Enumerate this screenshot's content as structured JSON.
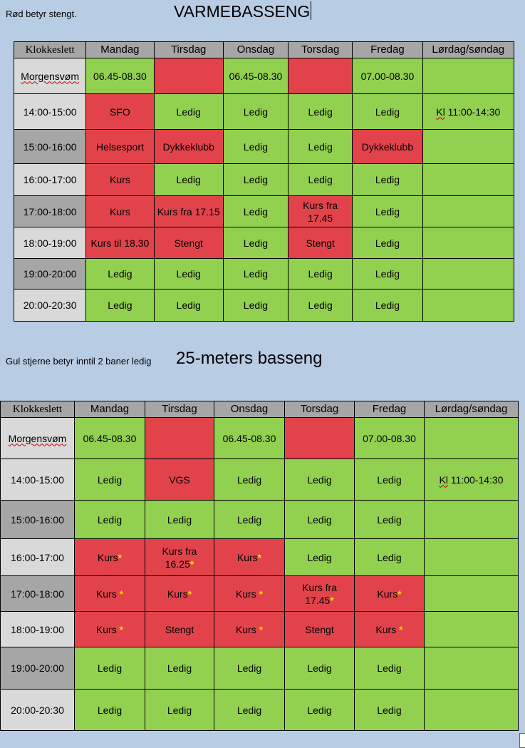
{
  "page": {
    "note1": "Rød betyr stengt.",
    "title1": "VARMEBASSENG",
    "note2": "Gul stjerne betyr inntil 2 baner ledig",
    "title2": "25-meters basseng"
  },
  "colors": {
    "red": "#e2434b",
    "green": "#92d050",
    "header": "#a6a6a6",
    "light_time": "#d9d9d9",
    "star": "#ffd700",
    "page_bg": "#b8cce4"
  },
  "table1": {
    "headers": [
      "Klokkeslett",
      "Mandag",
      "Tirsdag",
      "Onsdag",
      "Torsdag",
      "Fredag",
      "Lørdag/søndag"
    ],
    "rows": [
      {
        "time": "Morgensvøm",
        "cells": [
          {
            "t": "06.45-08.30",
            "c": "green"
          },
          {
            "t": "",
            "c": "red"
          },
          {
            "t": "06.45-08.30",
            "c": "green"
          },
          {
            "t": "",
            "c": "red"
          },
          {
            "t": "07.00-08.30",
            "c": "green"
          },
          {
            "t": "",
            "c": "green"
          }
        ]
      },
      {
        "time": "14:00-15:00",
        "cells": [
          {
            "t": "SFO",
            "c": "red"
          },
          {
            "t": "Ledig",
            "c": "green"
          },
          {
            "t": "Ledig",
            "c": "green"
          },
          {
            "t": "Ledig",
            "c": "green"
          },
          {
            "t": "Ledig",
            "c": "green"
          },
          {
            "t": "Kl 11:00-14:30",
            "c": "green"
          }
        ]
      },
      {
        "time": "15:00-16:00",
        "cells": [
          {
            "t": "Helsesport",
            "c": "red"
          },
          {
            "t": "Dykkeklubb",
            "c": "red"
          },
          {
            "t": "Ledig",
            "c": "green"
          },
          {
            "t": "Ledig",
            "c": "green"
          },
          {
            "t": "Dykkeklubb",
            "c": "red"
          },
          {
            "t": "",
            "c": "green"
          }
        ]
      },
      {
        "time": "16:00-17:00",
        "cells": [
          {
            "t": "Kurs",
            "c": "red"
          },
          {
            "t": "Ledig",
            "c": "green"
          },
          {
            "t": "Ledig",
            "c": "green"
          },
          {
            "t": "Ledig",
            "c": "green"
          },
          {
            "t": "Ledig",
            "c": "green"
          },
          {
            "t": "",
            "c": "green"
          }
        ]
      },
      {
        "time": "17:00-18:00",
        "cells": [
          {
            "t": "Kurs",
            "c": "red"
          },
          {
            "t": "Kurs fra 17.15",
            "c": "red"
          },
          {
            "t": "Ledig",
            "c": "green"
          },
          {
            "t": "Kurs fra 17.45",
            "c": "red"
          },
          {
            "t": "Ledig",
            "c": "green"
          },
          {
            "t": "",
            "c": "green"
          }
        ]
      },
      {
        "time": "18:00-19:00",
        "cells": [
          {
            "t": "Kurs til 18.30",
            "c": "red"
          },
          {
            "t": "Stengt",
            "c": "red"
          },
          {
            "t": "Ledig",
            "c": "green"
          },
          {
            "t": "Stengt",
            "c": "red"
          },
          {
            "t": "Ledig",
            "c": "green"
          },
          {
            "t": "",
            "c": "green"
          }
        ]
      },
      {
        "time": "19:00-20:00",
        "cells": [
          {
            "t": "Ledig",
            "c": "green"
          },
          {
            "t": "Ledig",
            "c": "green"
          },
          {
            "t": "Ledig",
            "c": "green"
          },
          {
            "t": "Ledig",
            "c": "green"
          },
          {
            "t": "Ledig",
            "c": "green"
          },
          {
            "t": "",
            "c": "green"
          }
        ]
      },
      {
        "time": "20:00-20:30",
        "cells": [
          {
            "t": "Ledig",
            "c": "green"
          },
          {
            "t": "Ledig",
            "c": "green"
          },
          {
            "t": "Ledig",
            "c": "green"
          },
          {
            "t": "Ledig",
            "c": "green"
          },
          {
            "t": "Ledig",
            "c": "green"
          },
          {
            "t": "",
            "c": "green"
          }
        ]
      }
    ]
  },
  "table2": {
    "headers": [
      "Klokkeslett",
      "Mandag",
      "Tirsdag",
      "Onsdag",
      "Torsdag",
      "Fredag",
      "Lørdag/søndag"
    ],
    "rows": [
      {
        "time": "Morgensvøm",
        "cells": [
          {
            "t": "06.45-08.30",
            "c": "green"
          },
          {
            "t": "",
            "c": "red"
          },
          {
            "t": "06.45-08.30",
            "c": "green"
          },
          {
            "t": "",
            "c": "red"
          },
          {
            "t": "07.00-08.30",
            "c": "green"
          },
          {
            "t": "",
            "c": "green"
          }
        ]
      },
      {
        "time": "14:00-15:00",
        "cells": [
          {
            "t": "Ledig",
            "c": "green"
          },
          {
            "t": "VGS",
            "c": "red"
          },
          {
            "t": "Ledig",
            "c": "green"
          },
          {
            "t": "Ledig",
            "c": "green"
          },
          {
            "t": "Ledig",
            "c": "green"
          },
          {
            "t": "Kl 11:00-14:30",
            "c": "green"
          }
        ]
      },
      {
        "time": "15:00-16:00",
        "cells": [
          {
            "t": "Ledig",
            "c": "green"
          },
          {
            "t": "Ledig",
            "c": "green"
          },
          {
            "t": "Ledig",
            "c": "green"
          },
          {
            "t": "Ledig",
            "c": "green"
          },
          {
            "t": "Ledig",
            "c": "green"
          },
          {
            "t": "",
            "c": "green"
          }
        ]
      },
      {
        "time": "16:00-17:00",
        "cells": [
          {
            "t": "Kurs",
            "c": "red",
            "star": true
          },
          {
            "t": "Kurs fra 16.25",
            "c": "red",
            "star": true
          },
          {
            "t": "Kurs",
            "c": "red",
            "star": true
          },
          {
            "t": "Ledig",
            "c": "green"
          },
          {
            "t": "Ledig",
            "c": "green"
          },
          {
            "t": "",
            "c": "green"
          }
        ]
      },
      {
        "time": "17:00-18:00",
        "cells": [
          {
            "t": "Kurs ",
            "c": "red",
            "star": true
          },
          {
            "t": "Kurs",
            "c": "red",
            "star": true
          },
          {
            "t": "Kurs ",
            "c": "red",
            "star": true
          },
          {
            "t": "Kurs fra 17.45",
            "c": "red",
            "star": true
          },
          {
            "t": "Kurs",
            "c": "red",
            "star": true
          },
          {
            "t": "",
            "c": "green"
          }
        ]
      },
      {
        "time": "18:00-19:00",
        "cells": [
          {
            "t": "Kurs ",
            "c": "red",
            "star": true
          },
          {
            "t": "Stengt",
            "c": "red"
          },
          {
            "t": "Kurs ",
            "c": "red",
            "star": true
          },
          {
            "t": "Stengt",
            "c": "red"
          },
          {
            "t": "Kurs ",
            "c": "red",
            "star": true
          },
          {
            "t": "",
            "c": "green"
          }
        ]
      },
      {
        "time": "19:00-20:00",
        "cells": [
          {
            "t": "Ledig",
            "c": "green"
          },
          {
            "t": "Ledig",
            "c": "green"
          },
          {
            "t": "Ledig",
            "c": "green"
          },
          {
            "t": "Ledig",
            "c": "green"
          },
          {
            "t": "Ledig",
            "c": "green"
          },
          {
            "t": "",
            "c": "green"
          }
        ]
      },
      {
        "time": "20:00-20:30",
        "cells": [
          {
            "t": "Ledig",
            "c": "green"
          },
          {
            "t": "Ledig",
            "c": "green"
          },
          {
            "t": "Ledig",
            "c": "green"
          },
          {
            "t": "Ledig",
            "c": "green"
          },
          {
            "t": "Ledig",
            "c": "green"
          },
          {
            "t": "",
            "c": "green"
          }
        ]
      }
    ]
  }
}
